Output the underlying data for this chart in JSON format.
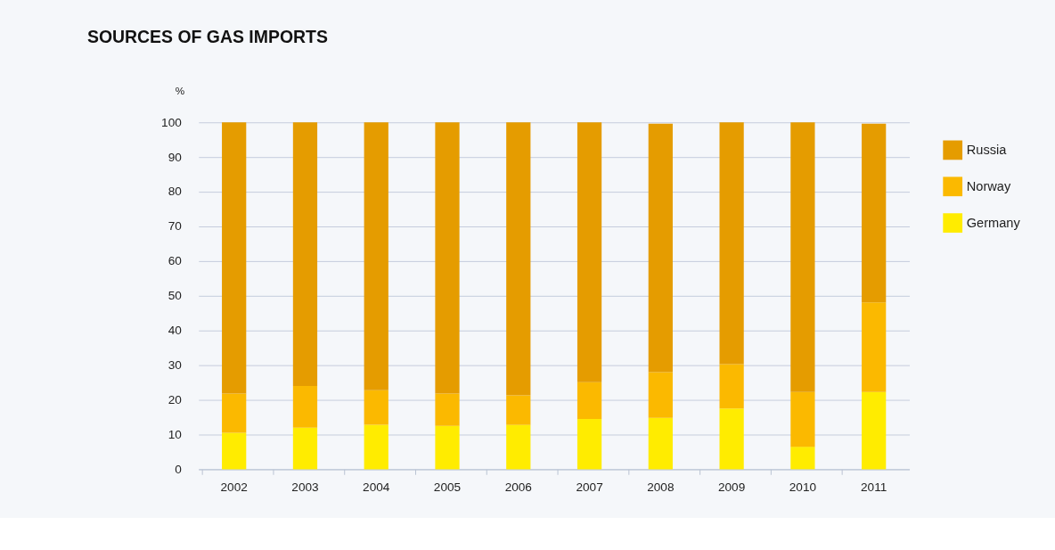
{
  "chart_data": {
    "type": "bar",
    "title": "SOURCES OF GAS IMPORTS",
    "ylabel": "%",
    "stacked": true,
    "categories": [
      "2002",
      "2003",
      "2004",
      "2005",
      "2006",
      "2007",
      "2008",
      "2009",
      "2010",
      "2011"
    ],
    "series": [
      {
        "name": "Germany",
        "color": "#ffec00",
        "values": [
          10.5,
          12.0,
          12.8,
          12.5,
          12.8,
          14.5,
          14.8,
          17.5,
          6.5,
          22.3
        ]
      },
      {
        "name": "Norway",
        "color": "#fbb900",
        "values": [
          11.3,
          12.0,
          10.0,
          9.3,
          8.5,
          10.6,
          13.2,
          12.8,
          15.8,
          25.8
        ]
      },
      {
        "name": "Russia",
        "color": "#e59c00",
        "values": [
          78.2,
          76.0,
          77.2,
          78.2,
          78.7,
          74.9,
          71.6,
          69.7,
          77.7,
          51.5
        ]
      }
    ],
    "ylim": [
      0,
      100
    ],
    "yticks": [
      0,
      10,
      20,
      30,
      40,
      50,
      60,
      70,
      80,
      90,
      100
    ],
    "grid": "y",
    "legend": "right"
  }
}
